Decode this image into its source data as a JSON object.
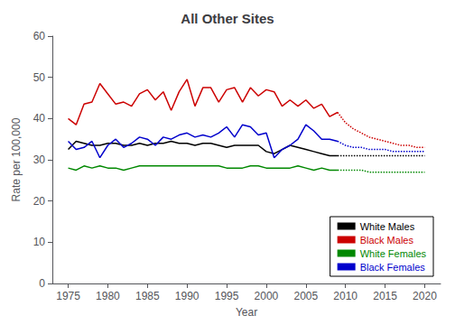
{
  "chart_data": {
    "type": "line",
    "title": "All Other Sites",
    "xlabel": "Year",
    "ylabel": "Rate per 100,000",
    "xlim": [
      1973,
      2022
    ],
    "xticks": [
      1975,
      1980,
      1985,
      1990,
      1995,
      2000,
      2005,
      2010,
      2015,
      2020
    ],
    "ylim": [
      0,
      60
    ],
    "yticks": [
      0,
      10,
      20,
      30,
      40,
      50,
      60
    ],
    "grid": false,
    "legend": "lower right",
    "series": [
      {
        "name": "White Males",
        "color": "#000000",
        "line_style": "solid",
        "x": [
          1975,
          1976,
          1977,
          1978,
          1979,
          1980,
          1981,
          1982,
          1983,
          1984,
          1985,
          1986,
          1987,
          1988,
          1989,
          1990,
          1991,
          1992,
          1993,
          1994,
          1995,
          1996,
          1997,
          1998,
          1999,
          2000,
          2001,
          2002,
          2003,
          2004,
          2005,
          2006,
          2007,
          2008,
          2009
        ],
        "values": [
          32.5,
          34.5,
          34.0,
          33.5,
          33.5,
          34.0,
          34.0,
          33.5,
          33.5,
          34.0,
          33.5,
          34.0,
          34.0,
          34.5,
          34.0,
          34.0,
          33.5,
          34.0,
          34.0,
          33.5,
          33.0,
          33.5,
          33.5,
          33.5,
          33.5,
          32.0,
          31.5,
          32.5,
          33.5,
          33.0,
          32.5,
          32.0,
          31.5,
          31.0,
          31.0
        ]
      },
      {
        "name": "Black Males",
        "color": "#cc0000",
        "line_style": "solid",
        "x": [
          1975,
          1976,
          1977,
          1978,
          1979,
          1980,
          1981,
          1982,
          1983,
          1984,
          1985,
          1986,
          1987,
          1988,
          1989,
          1990,
          1991,
          1992,
          1993,
          1994,
          1995,
          1996,
          1997,
          1998,
          1999,
          2000,
          2001,
          2002,
          2003,
          2004,
          2005,
          2006,
          2007,
          2008,
          2009
        ],
        "values": [
          40.0,
          38.5,
          43.5,
          44.0,
          48.5,
          46.0,
          43.5,
          44.0,
          43.0,
          46.0,
          47.0,
          44.5,
          46.5,
          42.0,
          46.5,
          49.5,
          43.0,
          47.5,
          47.5,
          44.0,
          47.0,
          47.5,
          44.0,
          47.5,
          45.5,
          47.0,
          46.5,
          43.0,
          44.5,
          43.0,
          44.5,
          42.5,
          43.5,
          40.5,
          41.5
        ]
      },
      {
        "name": "White Females",
        "color": "#008800",
        "line_style": "solid",
        "x": [
          1975,
          1976,
          1977,
          1978,
          1979,
          1980,
          1981,
          1982,
          1983,
          1984,
          1985,
          1986,
          1987,
          1988,
          1989,
          1990,
          1991,
          1992,
          1993,
          1994,
          1995,
          1996,
          1997,
          1998,
          1999,
          2000,
          2001,
          2002,
          2003,
          2004,
          2005,
          2006,
          2007,
          2008,
          2009
        ],
        "values": [
          28.0,
          27.5,
          28.5,
          28.0,
          28.5,
          28.0,
          28.0,
          27.5,
          28.0,
          28.5,
          28.5,
          28.5,
          28.5,
          28.5,
          28.5,
          28.5,
          28.5,
          28.5,
          28.5,
          28.5,
          28.0,
          28.0,
          28.0,
          28.5,
          28.5,
          28.0,
          28.0,
          28.0,
          28.0,
          28.5,
          28.0,
          27.5,
          28.0,
          27.5,
          27.5
        ]
      },
      {
        "name": "Black Females",
        "color": "#0000cc",
        "line_style": "solid",
        "x": [
          1975,
          1976,
          1977,
          1978,
          1979,
          1980,
          1981,
          1982,
          1983,
          1984,
          1985,
          1986,
          1987,
          1988,
          1989,
          1990,
          1991,
          1992,
          1993,
          1994,
          1995,
          1996,
          1997,
          1998,
          1999,
          2000,
          2001,
          2002,
          2003,
          2004,
          2005,
          2006,
          2007,
          2008,
          2009
        ],
        "values": [
          34.5,
          32.5,
          33.0,
          34.5,
          30.5,
          33.5,
          35.0,
          33.0,
          34.0,
          35.5,
          35.0,
          33.5,
          35.5,
          35.0,
          36.0,
          36.5,
          35.5,
          36.0,
          35.5,
          36.5,
          38.0,
          35.5,
          38.5,
          38.0,
          36.0,
          36.5,
          30.5,
          32.5,
          33.5,
          35.0,
          38.5,
          37.0,
          35.0,
          35.0,
          34.5
        ]
      },
      {
        "name": "White Males",
        "color": "#000000",
        "line_style": "dotted",
        "x": [
          2009,
          2010,
          2011,
          2012,
          2013,
          2014,
          2015,
          2016,
          2017,
          2018,
          2019,
          2020
        ],
        "values": [
          31.0,
          31.0,
          31.0,
          31.0,
          31.0,
          31.0,
          31.0,
          31.0,
          31.0,
          31.0,
          31.0,
          31.0
        ]
      },
      {
        "name": "Black Males",
        "color": "#cc0000",
        "line_style": "dotted",
        "x": [
          2009,
          2010,
          2011,
          2012,
          2013,
          2014,
          2015,
          2016,
          2017,
          2018,
          2019,
          2020
        ],
        "values": [
          41.5,
          39.0,
          37.5,
          36.5,
          35.5,
          35.0,
          34.5,
          34.0,
          33.5,
          33.5,
          33.0,
          33.0
        ]
      },
      {
        "name": "White Females",
        "color": "#008800",
        "line_style": "dotted",
        "x": [
          2009,
          2010,
          2011,
          2012,
          2013,
          2014,
          2015,
          2016,
          2017,
          2018,
          2019,
          2020
        ],
        "values": [
          27.5,
          27.5,
          27.5,
          27.5,
          27.0,
          27.0,
          27.0,
          27.0,
          27.0,
          27.0,
          27.0,
          27.0
        ]
      },
      {
        "name": "Black Females",
        "color": "#0000cc",
        "line_style": "dotted",
        "x": [
          2009,
          2010,
          2011,
          2012,
          2013,
          2014,
          2015,
          2016,
          2017,
          2018,
          2019,
          2020
        ],
        "values": [
          34.5,
          33.5,
          33.0,
          33.0,
          32.5,
          32.5,
          32.5,
          32.0,
          32.0,
          32.0,
          32.0,
          32.0
        ]
      }
    ]
  }
}
